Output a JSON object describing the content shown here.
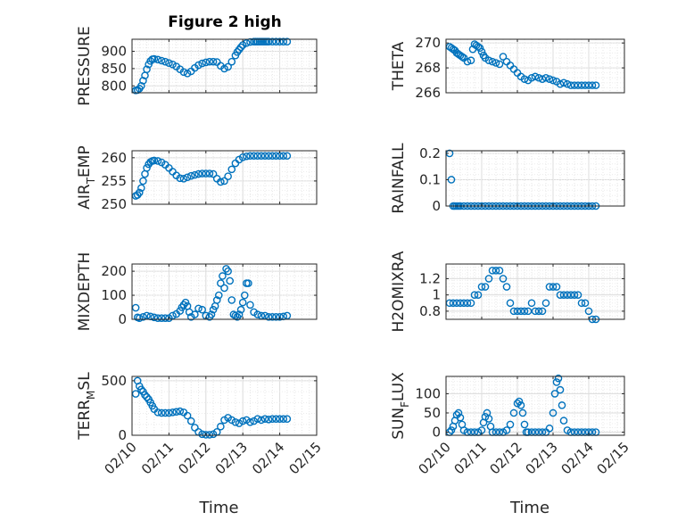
{
  "figure": {
    "title": "Figure 2 high",
    "xlabel": "Time",
    "date_ticks": [
      "02/10",
      "02/11",
      "02/12",
      "02/13",
      "02/14",
      "02/15"
    ],
    "marker_color": "#0072BD"
  },
  "chart_data": [
    {
      "type": "scatter",
      "title": "Figure 2 high",
      "ylabel": "PRESSURE",
      "xlabel": "",
      "xlim": [
        0,
        5
      ],
      "ylim": [
        780,
        935
      ],
      "yticks": [
        800,
        850,
        900
      ],
      "yticklabels": [
        "800",
        "850",
        "900"
      ],
      "series": [
        {
          "name": "PRESSURE",
          "x": [
            0.1,
            0.15,
            0.2,
            0.25,
            0.3,
            0.35,
            0.4,
            0.45,
            0.5,
            0.55,
            0.6,
            0.7,
            0.8,
            0.9,
            1.0,
            1.1,
            1.2,
            1.3,
            1.4,
            1.5,
            1.6,
            1.7,
            1.8,
            1.9,
            2.0,
            2.1,
            2.2,
            2.3,
            2.4,
            2.5,
            2.6,
            2.7,
            2.8,
            2.85,
            2.9,
            2.95,
            3.0,
            3.1,
            3.2,
            3.3,
            3.35,
            3.4,
            3.45,
            3.5,
            3.55,
            3.6,
            3.65,
            3.7,
            3.8,
            3.9,
            4.0,
            4.1,
            4.2
          ],
          "y": [
            787,
            788,
            792,
            800,
            815,
            830,
            848,
            862,
            872,
            877,
            878,
            876,
            873,
            870,
            866,
            862,
            856,
            848,
            840,
            836,
            842,
            852,
            860,
            865,
            868,
            870,
            870,
            869,
            858,
            850,
            855,
            870,
            888,
            898,
            905,
            912,
            918,
            924,
            927,
            928,
            928,
            928,
            928,
            928,
            928,
            928,
            928,
            928,
            928,
            928,
            928,
            928,
            928
          ]
        }
      ]
    },
    {
      "type": "scatter",
      "title": "",
      "ylabel": "THETA",
      "xlabel": "",
      "xlim": [
        0,
        5
      ],
      "ylim": [
        266,
        270.3
      ],
      "yticks": [
        266,
        268,
        270
      ],
      "yticklabels": [
        "266",
        "268",
        "270"
      ],
      "series": [
        {
          "name": "THETA",
          "x": [
            0.1,
            0.15,
            0.2,
            0.25,
            0.3,
            0.35,
            0.4,
            0.45,
            0.5,
            0.6,
            0.7,
            0.75,
            0.8,
            0.85,
            0.9,
            0.95,
            1.0,
            1.05,
            1.1,
            1.2,
            1.3,
            1.4,
            1.5,
            1.6,
            1.7,
            1.8,
            1.9,
            2.0,
            2.1,
            2.2,
            2.3,
            2.4,
            2.5,
            2.6,
            2.7,
            2.8,
            2.9,
            3.0,
            3.1,
            3.2,
            3.3,
            3.4,
            3.5,
            3.6,
            3.7,
            3.8,
            3.9,
            4.0,
            4.1,
            4.2
          ],
          "y": [
            269.7,
            269.6,
            269.5,
            269.4,
            269.2,
            269.1,
            269.0,
            268.9,
            268.8,
            268.5,
            268.6,
            269.5,
            269.9,
            269.8,
            269.7,
            269.6,
            269.3,
            269.0,
            268.8,
            268.6,
            268.5,
            268.4,
            268.3,
            268.9,
            268.5,
            268.2,
            267.9,
            267.6,
            267.3,
            267.1,
            267.0,
            267.2,
            267.3,
            267.2,
            267.1,
            267.2,
            267.1,
            267.0,
            266.9,
            266.7,
            266.8,
            266.7,
            266.6,
            266.6,
            266.6,
            266.6,
            266.6,
            266.6,
            266.6,
            266.6
          ]
        }
      ]
    },
    {
      "type": "scatter",
      "title": "",
      "ylabel": "AIR_TEMP",
      "xlabel": "",
      "xlim": [
        0,
        5
      ],
      "ylim": [
        250,
        261.5
      ],
      "yticks": [
        250,
        255,
        260
      ],
      "yticklabels": [
        "250",
        "255",
        "260"
      ],
      "series": [
        {
          "name": "AIR_TEMP",
          "x": [
            0.1,
            0.15,
            0.2,
            0.25,
            0.3,
            0.35,
            0.4,
            0.45,
            0.5,
            0.55,
            0.6,
            0.7,
            0.8,
            0.9,
            1.0,
            1.1,
            1.2,
            1.3,
            1.4,
            1.5,
            1.6,
            1.7,
            1.8,
            1.9,
            2.0,
            2.1,
            2.2,
            2.3,
            2.4,
            2.5,
            2.6,
            2.7,
            2.8,
            2.9,
            3.0,
            3.1,
            3.2,
            3.3,
            3.4,
            3.5,
            3.6,
            3.7,
            3.8,
            3.9,
            4.0,
            4.1,
            4.2
          ],
          "y": [
            251.8,
            252.0,
            252.5,
            253.5,
            255.0,
            256.5,
            257.8,
            258.6,
            259.1,
            259.3,
            259.4,
            259.3,
            259.0,
            258.5,
            257.8,
            257.0,
            256.2,
            255.6,
            255.5,
            255.8,
            256.1,
            256.3,
            256.5,
            256.6,
            256.6,
            256.6,
            256.5,
            255.5,
            254.8,
            255.0,
            256.0,
            257.5,
            258.8,
            259.6,
            260.1,
            260.3,
            260.4,
            260.4,
            260.4,
            260.4,
            260.4,
            260.4,
            260.4,
            260.4,
            260.4,
            260.4,
            260.4
          ]
        }
      ]
    },
    {
      "type": "scatter",
      "title": "",
      "ylabel": "RAINFALL",
      "xlabel": "",
      "xlim": [
        0,
        5
      ],
      "ylim": [
        0,
        0.21
      ],
      "yticks": [
        0,
        0.1,
        0.2
      ],
      "yticklabels": [
        "0",
        "0.1",
        "0.2"
      ],
      "series": [
        {
          "name": "RAINFALL",
          "x": [
            0.1,
            0.15,
            0.2,
            0.25,
            0.3,
            0.35,
            0.4,
            0.5,
            0.6,
            0.7,
            0.8,
            0.9,
            1.0,
            1.1,
            1.2,
            1.3,
            1.4,
            1.5,
            1.6,
            1.7,
            1.8,
            1.9,
            2.0,
            2.1,
            2.2,
            2.3,
            2.4,
            2.5,
            2.6,
            2.7,
            2.8,
            2.9,
            3.0,
            3.1,
            3.2,
            3.3,
            3.4,
            3.5,
            3.6,
            3.7,
            3.8,
            3.9,
            4.0,
            4.1,
            4.2
          ],
          "y": [
            0.2,
            0.1,
            0,
            0,
            0,
            0,
            0,
            0,
            0,
            0,
            0,
            0,
            0,
            0,
            0,
            0,
            0,
            0,
            0,
            0,
            0,
            0,
            0,
            0,
            0,
            0,
            0,
            0,
            0,
            0,
            0,
            0,
            0,
            0,
            0,
            0,
            0,
            0,
            0,
            0,
            0,
            0,
            0,
            0,
            0
          ]
        }
      ]
    },
    {
      "type": "scatter",
      "title": "",
      "ylabel": "MIXDEPTH",
      "xlabel": "",
      "xlim": [
        0,
        5
      ],
      "ylim": [
        0,
        230
      ],
      "yticks": [
        0,
        100,
        200
      ],
      "yticklabels": [
        "0",
        "100",
        "200"
      ],
      "series": [
        {
          "name": "MIXDEPTH",
          "x": [
            0.1,
            0.15,
            0.2,
            0.3,
            0.4,
            0.5,
            0.6,
            0.7,
            0.8,
            0.9,
            1.0,
            1.1,
            1.2,
            1.3,
            1.35,
            1.4,
            1.45,
            1.5,
            1.55,
            1.6,
            1.7,
            1.8,
            1.9,
            2.0,
            2.1,
            2.15,
            2.2,
            2.25,
            2.3,
            2.35,
            2.4,
            2.45,
            2.5,
            2.55,
            2.6,
            2.65,
            2.7,
            2.75,
            2.8,
            2.85,
            2.9,
            2.95,
            3.0,
            3.05,
            3.1,
            3.15,
            3.2,
            3.3,
            3.4,
            3.5,
            3.6,
            3.7,
            3.8,
            3.9,
            4.0,
            4.1,
            4.2
          ],
          "y": [
            48,
            8,
            5,
            10,
            15,
            12,
            8,
            5,
            5,
            5,
            5,
            15,
            22,
            35,
            50,
            60,
            70,
            55,
            30,
            10,
            20,
            45,
            40,
            15,
            10,
            20,
            40,
            55,
            80,
            100,
            150,
            180,
            130,
            210,
            200,
            160,
            80,
            20,
            15,
            10,
            20,
            40,
            70,
            100,
            150,
            150,
            60,
            30,
            20,
            15,
            15,
            10,
            10,
            10,
            10,
            12,
            15
          ]
        }
      ]
    },
    {
      "type": "scatter",
      "title": "",
      "ylabel": "H2OMIXRA",
      "xlabel": "",
      "xlim": [
        0,
        5
      ],
      "ylim": [
        0.7,
        1.38
      ],
      "yticks": [
        0.8,
        1.0,
        1.2
      ],
      "yticklabels": [
        "0.8",
        "1",
        "1.2"
      ],
      "series": [
        {
          "name": "H2OMIXRA",
          "x": [
            0.1,
            0.2,
            0.3,
            0.4,
            0.5,
            0.6,
            0.7,
            0.8,
            0.9,
            1.0,
            1.1,
            1.2,
            1.3,
            1.4,
            1.5,
            1.6,
            1.7,
            1.8,
            1.9,
            2.0,
            2.1,
            2.2,
            2.3,
            2.4,
            2.5,
            2.6,
            2.7,
            2.8,
            2.9,
            3.0,
            3.1,
            3.2,
            3.3,
            3.4,
            3.5,
            3.6,
            3.7,
            3.8,
            3.9,
            4.0,
            4.1,
            4.2
          ],
          "y": [
            0.9,
            0.9,
            0.9,
            0.9,
            0.9,
            0.9,
            0.9,
            1.0,
            1.0,
            1.1,
            1.1,
            1.2,
            1.3,
            1.3,
            1.3,
            1.2,
            1.1,
            0.9,
            0.8,
            0.8,
            0.8,
            0.8,
            0.8,
            0.9,
            0.8,
            0.8,
            0.8,
            0.9,
            1.1,
            1.1,
            1.1,
            1.0,
            1.0,
            1.0,
            1.0,
            1.0,
            1.0,
            0.9,
            0.9,
            0.8,
            0.7,
            0.7
          ]
        }
      ]
    },
    {
      "type": "scatter",
      "title": "",
      "ylabel": "TERR_MSL",
      "xlabel": "Time",
      "xlim": [
        0,
        5
      ],
      "ylim": [
        0,
        540
      ],
      "yticks": [
        0,
        500
      ],
      "yticklabels": [
        "0",
        "500"
      ],
      "series": [
        {
          "name": "TERR_MSL",
          "x": [
            0.1,
            0.15,
            0.2,
            0.25,
            0.3,
            0.35,
            0.4,
            0.45,
            0.5,
            0.55,
            0.6,
            0.7,
            0.8,
            0.9,
            1.0,
            1.1,
            1.2,
            1.3,
            1.4,
            1.5,
            1.6,
            1.7,
            1.8,
            1.9,
            2.0,
            2.1,
            2.2,
            2.3,
            2.4,
            2.5,
            2.6,
            2.7,
            2.8,
            2.9,
            3.0,
            3.1,
            3.2,
            3.3,
            3.4,
            3.5,
            3.6,
            3.7,
            3.8,
            3.9,
            4.0,
            4.1,
            4.2
          ],
          "y": [
            380,
            500,
            450,
            420,
            400,
            370,
            350,
            330,
            300,
            270,
            240,
            210,
            205,
            205,
            205,
            210,
            215,
            220,
            210,
            180,
            130,
            70,
            30,
            10,
            5,
            5,
            10,
            30,
            80,
            140,
            160,
            140,
            120,
            110,
            130,
            140,
            120,
            130,
            150,
            140,
            150,
            145,
            150,
            150,
            150,
            150,
            150
          ]
        }
      ]
    },
    {
      "type": "scatter",
      "title": "",
      "ylabel": "SUN_FLUX",
      "xlabel": "Time",
      "xlim": [
        0,
        5
      ],
      "ylim": [
        -8,
        145
      ],
      "yticks": [
        0,
        50,
        100
      ],
      "yticklabels": [
        "0",
        "50",
        "100"
      ],
      "series": [
        {
          "name": "SUN_FLUX",
          "x": [
            0.1,
            0.15,
            0.2,
            0.25,
            0.3,
            0.35,
            0.4,
            0.45,
            0.5,
            0.6,
            0.7,
            0.8,
            0.9,
            1.0,
            1.05,
            1.1,
            1.15,
            1.2,
            1.25,
            1.3,
            1.4,
            1.5,
            1.6,
            1.7,
            1.8,
            1.9,
            2.0,
            2.05,
            2.1,
            2.15,
            2.2,
            2.25,
            2.3,
            2.4,
            2.5,
            2.6,
            2.7,
            2.8,
            2.9,
            3.0,
            3.05,
            3.1,
            3.15,
            3.2,
            3.25,
            3.3,
            3.4,
            3.5,
            3.6,
            3.7,
            3.8,
            3.9,
            4.0,
            4.1,
            4.2
          ],
          "y": [
            0,
            5,
            15,
            30,
            45,
            50,
            38,
            20,
            5,
            0,
            0,
            0,
            0,
            5,
            25,
            40,
            50,
            35,
            15,
            0,
            0,
            0,
            0,
            5,
            20,
            50,
            75,
            80,
            70,
            50,
            20,
            0,
            0,
            0,
            0,
            0,
            0,
            0,
            10,
            50,
            100,
            130,
            140,
            110,
            70,
            30,
            5,
            0,
            0,
            0,
            0,
            0,
            0,
            0,
            0
          ]
        }
      ]
    }
  ]
}
